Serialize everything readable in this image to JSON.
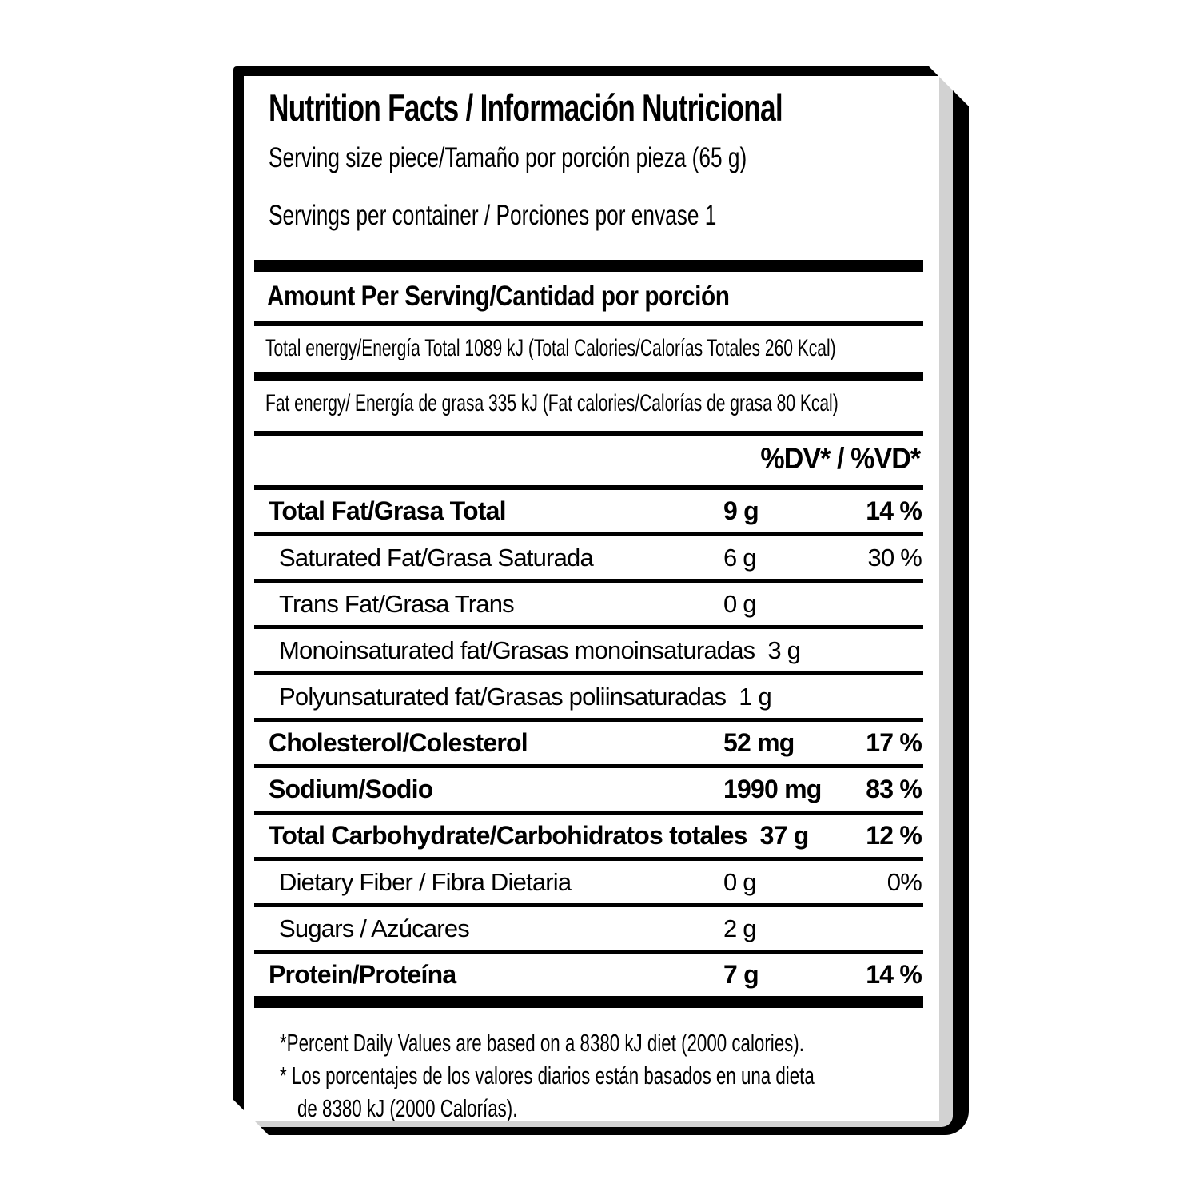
{
  "colors": {
    "ink": "#000000",
    "paper": "#ffffff",
    "side_shade": "#d2d2d2"
  },
  "label": {
    "title": "Nutrition Facts / Información Nutricional",
    "serving_size": "Serving size piece/Tamaño por porción pieza (65 g)",
    "servings_per_container": "Servings per container / Porciones por envase 1",
    "amount_per_serving_heading": "Amount Per Serving/Cantidad por porción",
    "total_energy_line": "Total energy/Energía Total 1089 kJ  (Total Calories/Calorías Totales 260 Kcal)",
    "fat_energy_line": "Fat energy/ Energía de grasa 335 kJ (Fat calories/Calorías de grasa 80 Kcal)",
    "daily_value_header": "%DV* / %VD*",
    "rows": [
      {
        "name": "Total Fat/Grasa Total",
        "amount": "9 g",
        "dv": "14 %"
      },
      {
        "name": "Saturated Fat/Grasa Saturada",
        "amount": "6 g",
        "dv": "30 %"
      },
      {
        "name": "Trans Fat/Grasa Trans",
        "amount": "0 g",
        "dv": ""
      },
      {
        "name": "Monoinsaturated fat/Grasas monoinsaturadas",
        "amount": "3 g",
        "dv": ""
      },
      {
        "name": "Polyunsaturated fat/Grasas poliinsaturadas",
        "amount": "1 g",
        "dv": ""
      },
      {
        "name": "Cholesterol/Colesterol",
        "amount": "52 mg",
        "dv": "17 %"
      },
      {
        "name": "Sodium/Sodio",
        "amount": "1990 mg",
        "dv": "83 %"
      },
      {
        "name": "Total Carbohydrate/Carbohidratos totales",
        "amount": "37 g",
        "dv": "12 %"
      },
      {
        "name": "Dietary Fiber / Fibra Dietaria",
        "amount": "0 g",
        "dv": "0%"
      },
      {
        "name": "Sugars / Azúcares",
        "amount": "2 g",
        "dv": ""
      },
      {
        "name": "Protein/Proteína",
        "amount": "7 g",
        "dv": "14 %"
      }
    ],
    "footnote_lines": [
      "*Percent Daily Values are based on a 8380 kJ diet (2000 calories).",
      "* Los porcentajes de los valores diarios están basados en una dieta",
      "de 8380 kJ (2000 Calorías)."
    ]
  }
}
